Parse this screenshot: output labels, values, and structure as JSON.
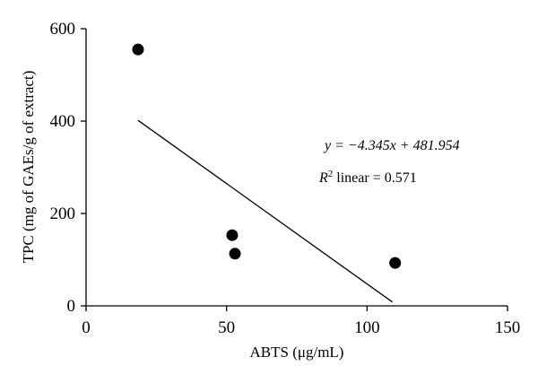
{
  "chart_data": {
    "type": "scatter",
    "title": "",
    "xlabel": "ABTS (μg/mL)",
    "ylabel": "TPC (mg of GAEs/g of extract)",
    "xlim": [
      0,
      150
    ],
    "ylim": [
      0,
      600
    ],
    "xticks": [
      0,
      50,
      100,
      150
    ],
    "yticks": [
      0,
      200,
      400,
      600
    ],
    "xtick_labels": [
      "0",
      "50",
      "100",
      "150"
    ],
    "ytick_labels": [
      "0",
      "200",
      "400",
      "600"
    ],
    "grid": false,
    "legend": "none",
    "points": [
      {
        "x": 18.5,
        "y": 555
      },
      {
        "x": 52,
        "y": 153
      },
      {
        "x": 53,
        "y": 113
      },
      {
        "x": 110,
        "y": 93
      }
    ],
    "regression": {
      "slope": -4.345,
      "intercept": 481.954,
      "x_start": 18.5,
      "x_end": 109,
      "equation_label": "y = −4.345x + 481.954",
      "r2_label": "R2 linear = 0.571",
      "r2_value": "0.571"
    },
    "colors": {
      "marker": "#000000",
      "line": "#000000",
      "axis": "#000000"
    }
  }
}
